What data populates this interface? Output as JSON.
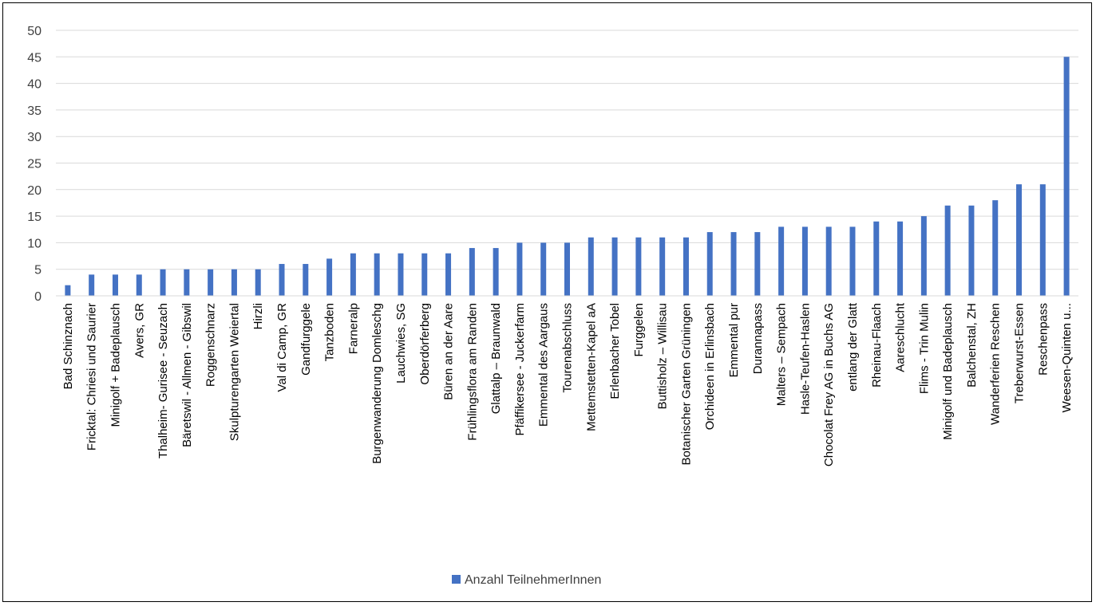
{
  "chart_data": {
    "type": "bar",
    "title": "",
    "xlabel": "",
    "ylabel": "",
    "ylim": [
      0,
      50
    ],
    "yticks": [
      0,
      5,
      10,
      15,
      20,
      25,
      30,
      35,
      40,
      45,
      50
    ],
    "grid": true,
    "legend_position": "bottom",
    "bar_color": "#4472C4",
    "categories": [
      "Bad Schinznach",
      "Fricktal: Chriesi und Saurier",
      "Minigolf + Badeplausch",
      "Avers, GR",
      "Thalheim- Gurisee - Seuzach",
      "Bäretswil - Allmen - Gibswil",
      "Roggenschnarz",
      "Skulpturengarten Weiertal",
      "Hirzli",
      "Val di Camp, GR",
      "Gandfurggele",
      "Tanzboden",
      "Farneralp",
      "Burgenwanderung Domleschg",
      "Lauchwies, SG",
      "Oberdörferberg",
      "Büren an der Aare",
      "Frühlingsflora am Randen",
      "Glattalp – Braunwald",
      "Pfäffikersee - Juckerfarm",
      "Emmental des Aargaus",
      "Tourenabschluss",
      "Mettemstetten-Kapel aA",
      "Erlenbacher Tobel",
      "Furggelen",
      "Buttisholz – Willisau",
      "Botanischer Garten Grüningen",
      "Orchideen in Erlinsbach",
      "Emmental pur",
      "Durannapass",
      "Malters – Sempach",
      "Hasle-Teufen-Haslen",
      "Chocolat Frey AG in Buchs AG",
      "entlang der Glatt",
      "Rheinau-Flaach",
      "Aareschlucht",
      "Flims - Trin Mulin",
      "Minigolf und Badeplausch",
      "Balchenstal, ZH",
      "Wanderferien Reschen",
      "Treberwurst-Essen",
      "Reschenpass",
      "Weesen-Quinten u..."
    ],
    "series": [
      {
        "name": "Anzahl TeilnehmerInnen",
        "values": [
          2,
          4,
          4,
          4,
          5,
          5,
          5,
          5,
          5,
          6,
          6,
          7,
          8,
          8,
          8,
          8,
          8,
          9,
          9,
          10,
          10,
          10,
          11,
          11,
          11,
          11,
          11,
          12,
          12,
          12,
          13,
          13,
          13,
          13,
          14,
          14,
          15,
          17,
          17,
          18,
          21,
          21,
          45
        ]
      }
    ]
  }
}
